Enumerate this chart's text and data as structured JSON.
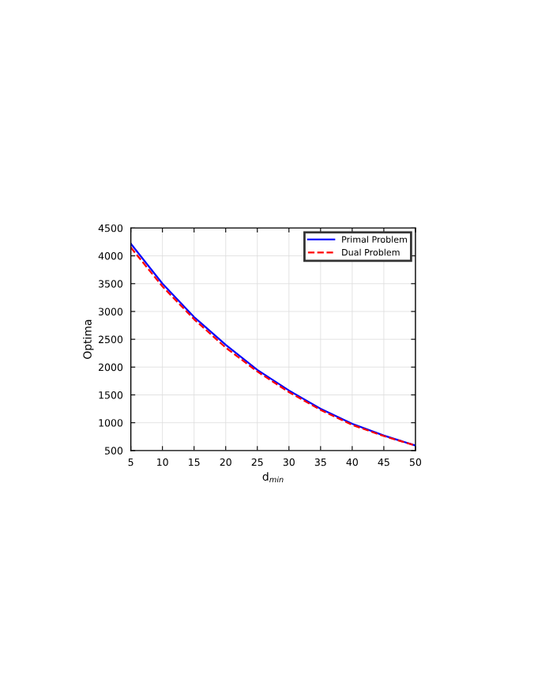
{
  "chart_data": {
    "type": "line",
    "xlabel": "d$_{min}$",
    "ylabel": "Optima",
    "x": [
      5,
      10,
      15,
      20,
      25,
      30,
      35,
      40,
      45,
      50
    ],
    "series": [
      {
        "name": "Primal Problem",
        "color": "#0000ff",
        "line_style": "solid",
        "values": [
          4220,
          3500,
          2900,
          2400,
          1950,
          1580,
          1250,
          980,
          770,
          590
        ]
      },
      {
        "name": "Dual Problem",
        "color": "#ff0000",
        "line_style": "dashed",
        "values": [
          4150,
          3450,
          2860,
          2350,
          1920,
          1550,
          1230,
          960,
          760,
          590
        ]
      }
    ],
    "xlim": [
      5,
      50
    ],
    "xticks": [
      5,
      10,
      15,
      20,
      25,
      30,
      35,
      40,
      45,
      50
    ],
    "ylim": [
      500,
      4500
    ],
    "yticks": [
      500,
      1000,
      1500,
      2000,
      2500,
      3000,
      3500,
      4000,
      4500
    ],
    "grid": true,
    "legend": "top right"
  }
}
